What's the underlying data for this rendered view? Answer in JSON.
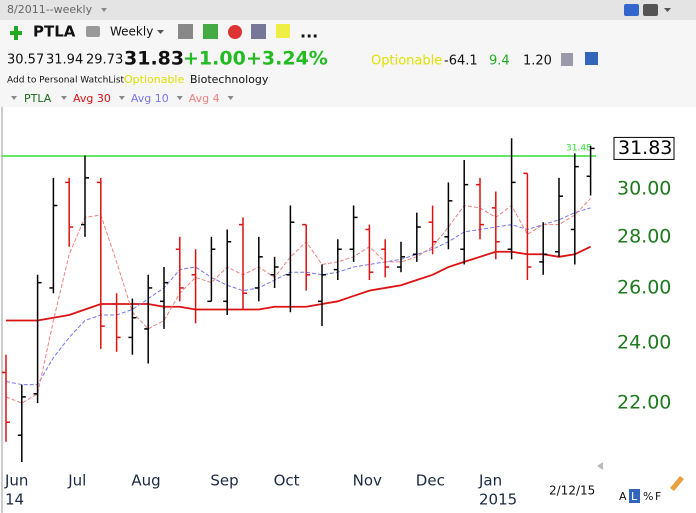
{
  "header": {
    "title": "8/2011--weekly",
    "symbol": "PTLA",
    "period": "Weekly",
    "more": "...",
    "change": "+1.00",
    "change_pct": "+3.24%",
    "optionable": "Optionable",
    "stat1": -64.1,
    "stat2": 9.4,
    "stat3": "1.20",
    "watchlist": "Add to Personal WatchList",
    "industry": "Biotechnology",
    "footer_buttons": [
      "A",
      "L",
      "%",
      "F"
    ]
  },
  "chart_data": {
    "type": "ohlc",
    "log_scale": true,
    "categories": [
      "Jun",
      null,
      null,
      null,
      "Jul",
      null,
      null,
      null,
      "Aug",
      null,
      null,
      null,
      null,
      "Sep",
      null,
      null,
      null,
      "Oct",
      null,
      null,
      null,
      null,
      "Nov",
      null,
      null,
      null,
      "Dec",
      null,
      null,
      null,
      "Jan",
      null,
      null,
      null,
      null,
      null,
      null,
      null
    ],
    "category_years": [
      "14",
      null,
      null,
      null,
      null,
      null,
      null,
      null,
      null,
      null,
      null,
      null,
      null,
      null,
      null,
      null,
      null,
      null,
      null,
      null,
      null,
      null,
      null,
      null,
      null,
      null,
      null,
      null,
      null,
      null,
      "2015",
      null,
      null,
      null,
      null,
      null,
      null,
      null
    ],
    "last_date": "2/12/15",
    "open": [
      23.0,
      21.0,
      22.3,
      26.0,
      30.3,
      28.5,
      30.3,
      25.4,
      24.2,
      24.5,
      25.5,
      27.5,
      26.5,
      25.5,
      25.5,
      28.5,
      26.0,
      26.5,
      26.5,
      28.5,
      25.5,
      26.7,
      27.5,
      28.3,
      27.5,
      26.8,
      27.3,
      28.6,
      28.0,
      27.5,
      30.2,
      29.2,
      27.5,
      30.7,
      27.0,
      27.4,
      28.3,
      30.57
    ],
    "high": [
      23.6,
      22.6,
      26.5,
      30.5,
      30.5,
      31.5,
      30.5,
      25.8,
      25.6,
      26.5,
      26.8,
      28.0,
      27.5,
      28.0,
      28.3,
      28.8,
      28.0,
      27.2,
      29.3,
      28.5,
      26.9,
      27.9,
      29.3,
      28.5,
      27.9,
      27.8,
      29.0,
      29.3,
      30.3,
      31.3,
      30.5,
      29.9,
      32.3,
      30.7,
      28.6,
      30.5,
      31.6,
      31.94
    ],
    "low": [
      20.8,
      20.2,
      22.0,
      25.8,
      27.6,
      28.0,
      23.8,
      23.7,
      23.6,
      23.3,
      24.5,
      25.5,
      24.7,
      25.5,
      25.0,
      25.2,
      25.5,
      26.0,
      25.1,
      25.9,
      24.6,
      26.3,
      27.0,
      26.3,
      26.4,
      26.6,
      27.0,
      27.3,
      27.5,
      26.9,
      27.9,
      27.1,
      27.1,
      26.3,
      26.5,
      27.2,
      26.9,
      29.73
    ],
    "close": [
      21.4,
      22.2,
      26.2,
      29.3,
      28.4,
      30.5,
      24.6,
      24.2,
      24.9,
      26.0,
      26.2,
      26.0,
      25.2,
      27.5,
      27.8,
      25.8,
      27.2,
      26.8,
      28.6,
      26.5,
      26.5,
      27.5,
      28.8,
      26.6,
      26.8,
      27.2,
      28.4,
      27.8,
      29.5,
      30.2,
      28.5,
      27.8,
      30.3,
      26.8,
      27.3,
      29.7,
      31.0,
      31.83
    ],
    "up_color": "#000000",
    "down_color": "#dd1111",
    "series": [
      {
        "name": "Avg 30",
        "color": "#dd1111",
        "dash": false,
        "values": [
          24.8,
          24.8,
          24.8,
          24.9,
          25.0,
          25.2,
          25.4,
          25.4,
          25.4,
          25.4,
          25.3,
          25.3,
          25.2,
          25.2,
          25.2,
          25.2,
          25.2,
          25.3,
          25.3,
          25.3,
          25.4,
          25.5,
          25.7,
          25.9,
          26.0,
          26.1,
          26.3,
          26.5,
          26.8,
          27.0,
          27.2,
          27.4,
          27.4,
          27.3,
          27.3,
          27.2,
          27.3,
          27.6
        ]
      },
      {
        "name": "Avg 10",
        "color": "#7777ee",
        "dash": true,
        "values": [
          22.7,
          22.6,
          22.6,
          23.5,
          24.2,
          24.8,
          25.0,
          25.0,
          25.2,
          25.6,
          26.0,
          26.7,
          26.8,
          26.4,
          26.1,
          25.9,
          26.0,
          26.3,
          26.6,
          26.6,
          26.5,
          26.6,
          26.8,
          26.9,
          27.0,
          27.1,
          27.3,
          27.5,
          27.8,
          28.2,
          28.3,
          28.4,
          28.5,
          28.3,
          28.5,
          28.7,
          29.0,
          29.2
        ]
      },
      {
        "name": "Avg 4",
        "color": "#f08080",
        "dash": true,
        "values": [
          22.2,
          22.0,
          22.3,
          24.8,
          27.3,
          28.8,
          28.9,
          27.0,
          25.1,
          24.5,
          24.8,
          25.8,
          26.4,
          26.2,
          26.8,
          26.5,
          26.8,
          26.4,
          27.2,
          27.8,
          26.9,
          27.0,
          27.2,
          27.6,
          27.0,
          27.0,
          27.2,
          27.6,
          28.4,
          29.3,
          29.2,
          28.8,
          29.3,
          28.1,
          28.5,
          28.5,
          28.9,
          29.6
        ]
      }
    ],
    "hline": {
      "value": 31.48,
      "color": "#33dd33"
    },
    "ylim": [
      20.2,
      33.8
    ],
    "yticks": [
      {
        "value": 22,
        "label": "22.00"
      },
      {
        "value": 24,
        "label": "24.00"
      },
      {
        "value": 26,
        "label": "26.00"
      },
      {
        "value": 28,
        "label": "28.00"
      },
      {
        "value": 30,
        "label": "30.00"
      }
    ],
    "grid": false
  }
}
